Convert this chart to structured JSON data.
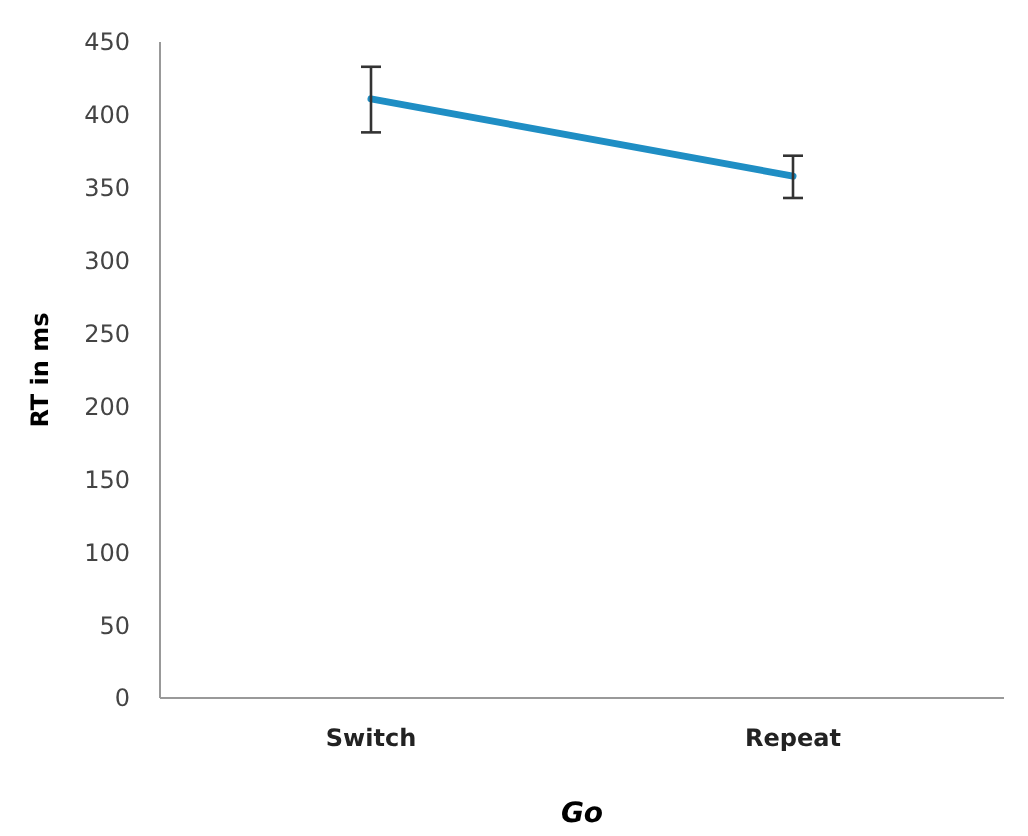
{
  "chart_data": {
    "type": "line",
    "xlabel": "Go",
    "ylabel": "RT in ms",
    "categories": [
      "Switch",
      "Repeat"
    ],
    "series": [
      {
        "color": "#1f8ec4",
        "values": [
          411,
          358
        ],
        "errors": [
          [
            388,
            433
          ],
          [
            343,
            372
          ]
        ]
      }
    ],
    "ylim": [
      0,
      450
    ],
    "yticks": [
      0,
      50,
      100,
      150,
      200,
      250,
      300,
      350,
      400,
      450
    ],
    "grid": false,
    "marker": "none",
    "line_style": "solid"
  }
}
